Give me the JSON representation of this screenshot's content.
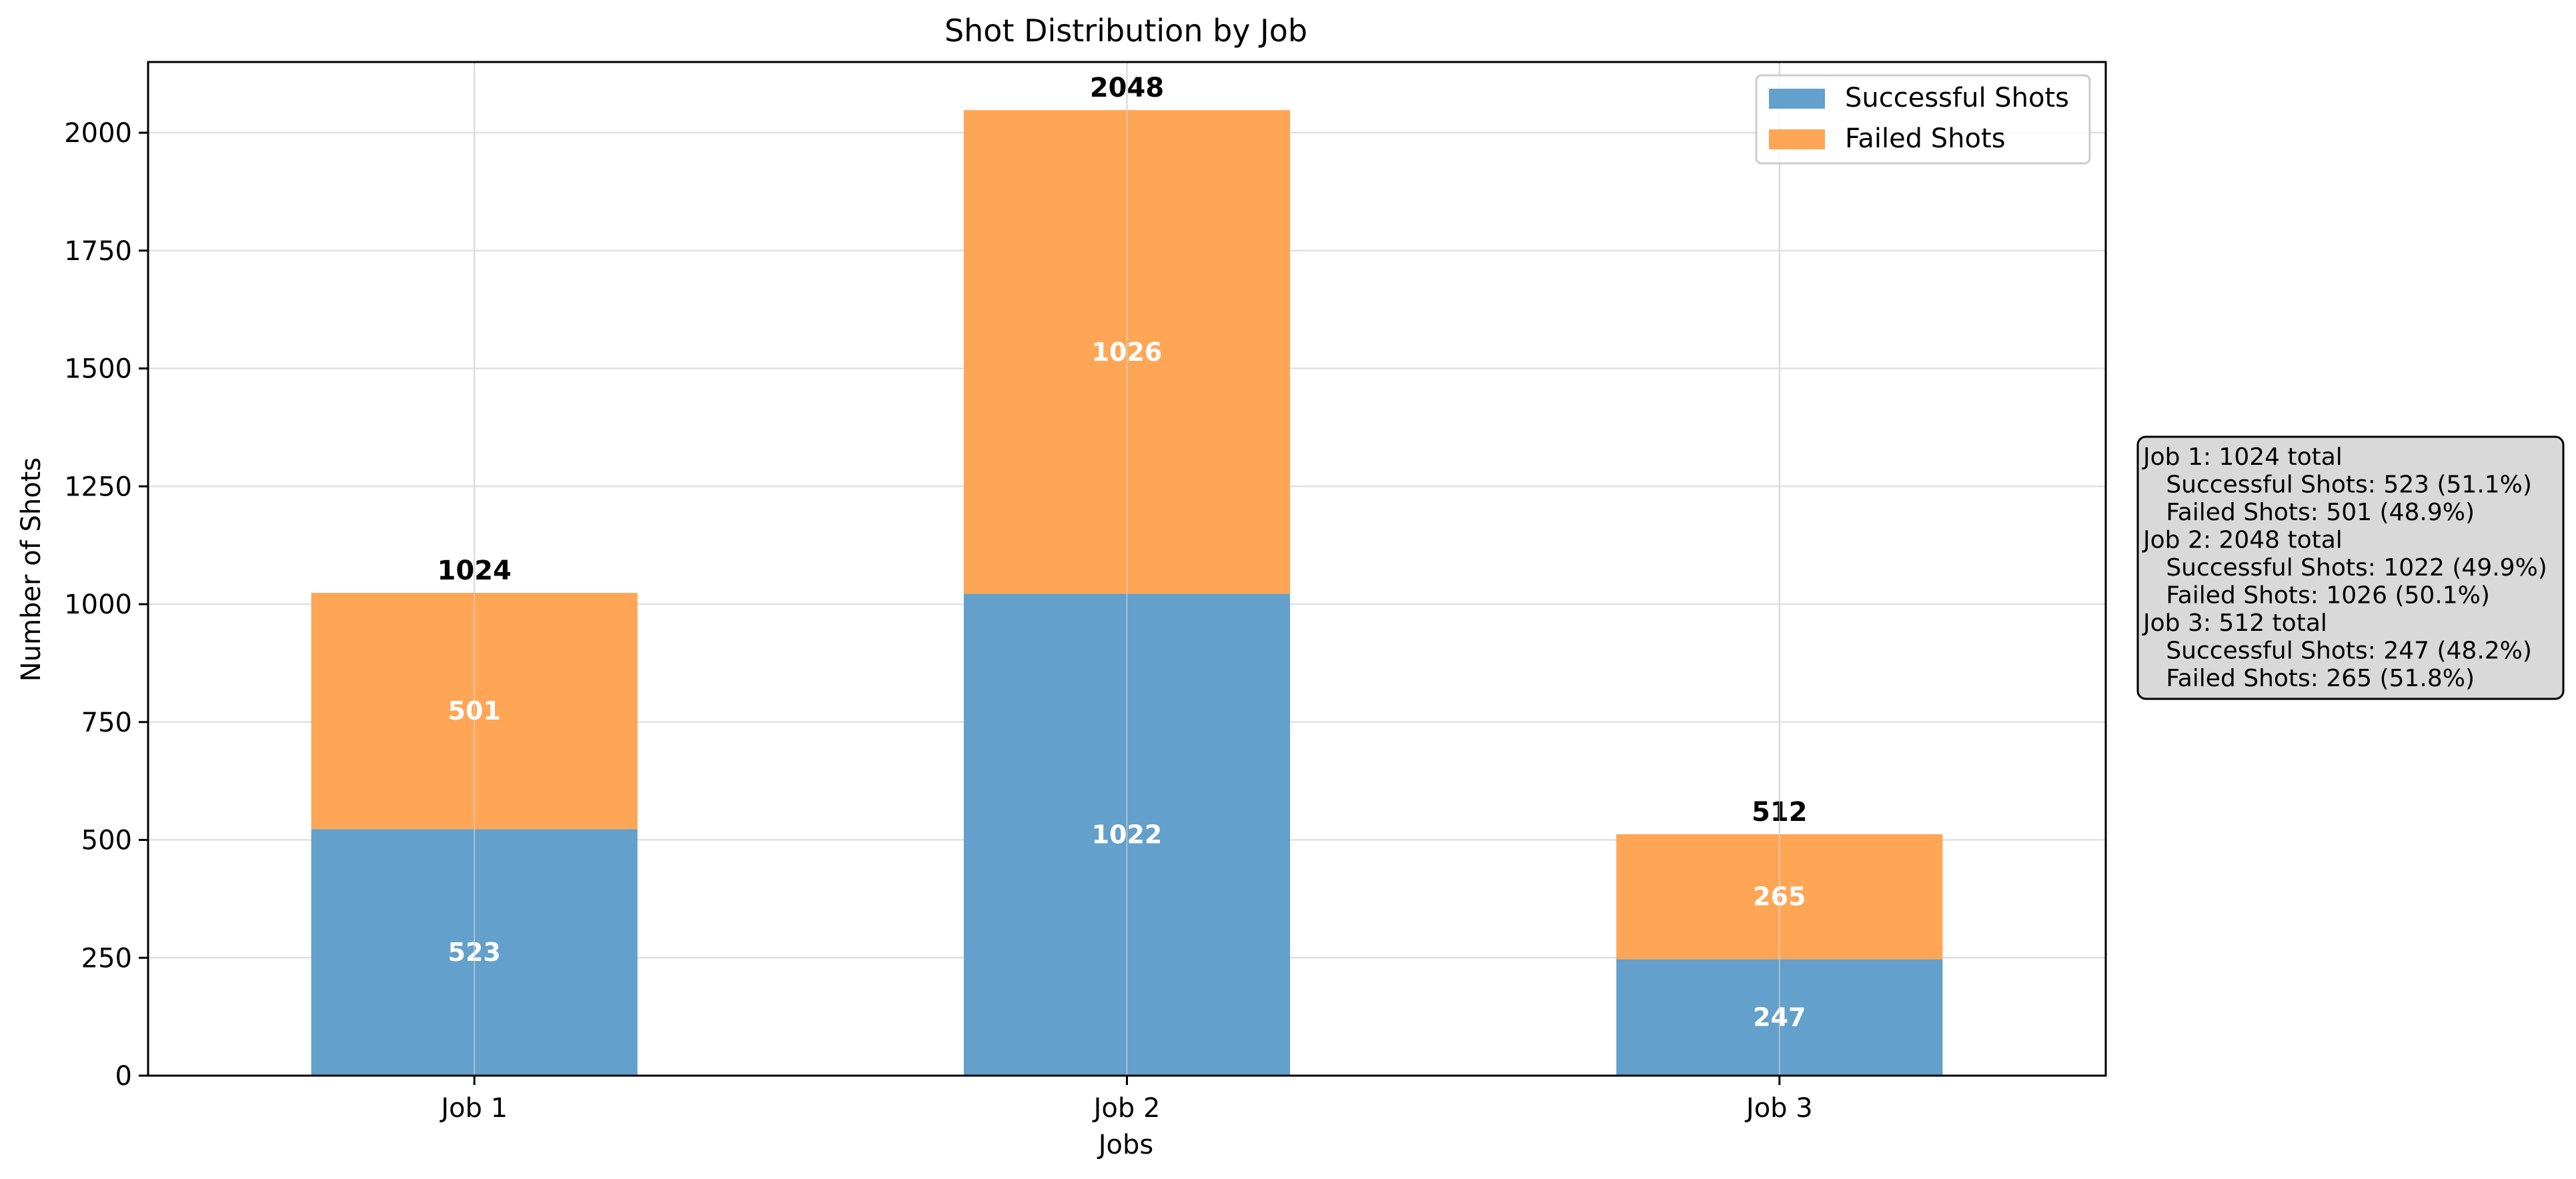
{
  "chart_data": {
    "type": "bar",
    "stacked": true,
    "title": "Shot Distribution by Job",
    "xlabel": "Jobs",
    "ylabel": "Number of Shots",
    "categories": [
      "Job 1",
      "Job 2",
      "Job 3"
    ],
    "series": [
      {
        "name": "Successful Shots",
        "values": [
          523,
          1022,
          247
        ],
        "color": "#63a0cb"
      },
      {
        "name": "Failed Shots",
        "values": [
          501,
          1026,
          265
        ],
        "color": "#ffa656"
      }
    ],
    "totals": [
      1024,
      2048,
      512
    ],
    "ylim": [
      0,
      2150
    ],
    "yticks": [
      0,
      250,
      500,
      750,
      1000,
      1250,
      1500,
      1750,
      2000
    ],
    "grid": true,
    "legend_position": "top-right",
    "summary_lines": [
      "Job 1: 1024 total",
      "  Successful Shots: 523 (51.1%)",
      "  Failed Shots: 501 (48.9%)",
      "Job 2: 2048 total",
      "  Successful Shots: 1022 (49.9%)",
      "  Failed Shots: 1026 (50.1%)",
      "Job 3: 512 total",
      "  Successful Shots: 247 (48.2%)",
      "  Failed Shots: 265 (51.8%)"
    ]
  }
}
